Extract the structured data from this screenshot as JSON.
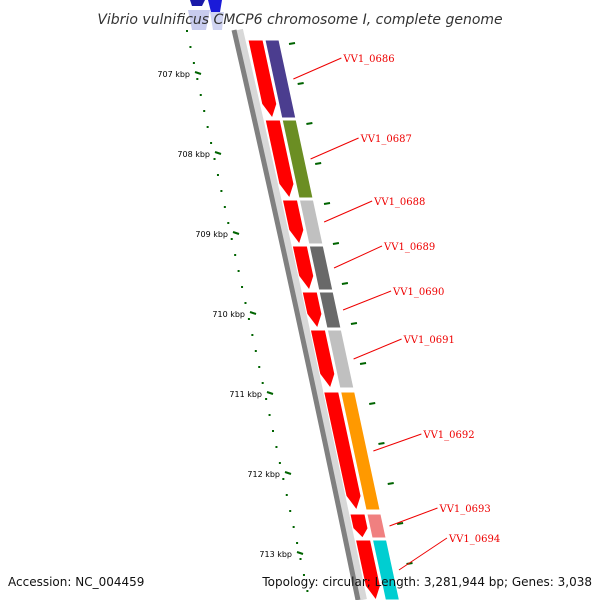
{
  "title": "Vibrio vulnificus CMCP6 chromosome I, complete genome",
  "accession_text": "Accession: NC_004459",
  "summary_text": "Topology: circular; Length: 3,281,944 bp; Genes: 3,038",
  "colors": {
    "backbone": "#808080",
    "forward_cds": "#ff0000",
    "label": "#ee0000",
    "ticks": "#006400"
  },
  "ruler": [
    {
      "label": "707 kbp"
    },
    {
      "label": "708 kbp"
    },
    {
      "label": "709 kbp"
    },
    {
      "label": "710 kbp"
    },
    {
      "label": "711 kbp"
    },
    {
      "label": "712 kbp"
    },
    {
      "label": "713 kbp"
    }
  ],
  "genes": [
    {
      "label": "VV1_0686",
      "color": "#4b3d8f"
    },
    {
      "label": "VV1_0687",
      "color": "#6b8e23"
    },
    {
      "label": "VV1_0688",
      "color": "#c0c0c0"
    },
    {
      "label": "VV1_0689",
      "color": "#696969"
    },
    {
      "label": "VV1_0690",
      "color": "#696969"
    },
    {
      "label": "VV1_0691",
      "color": "#c0c0c0"
    },
    {
      "label": "VV1_0692",
      "color": "#ff9900"
    },
    {
      "label": "VV1_0693",
      "color": "#f08080"
    },
    {
      "label": "VV1_0694",
      "color": "#00ced1"
    }
  ]
}
